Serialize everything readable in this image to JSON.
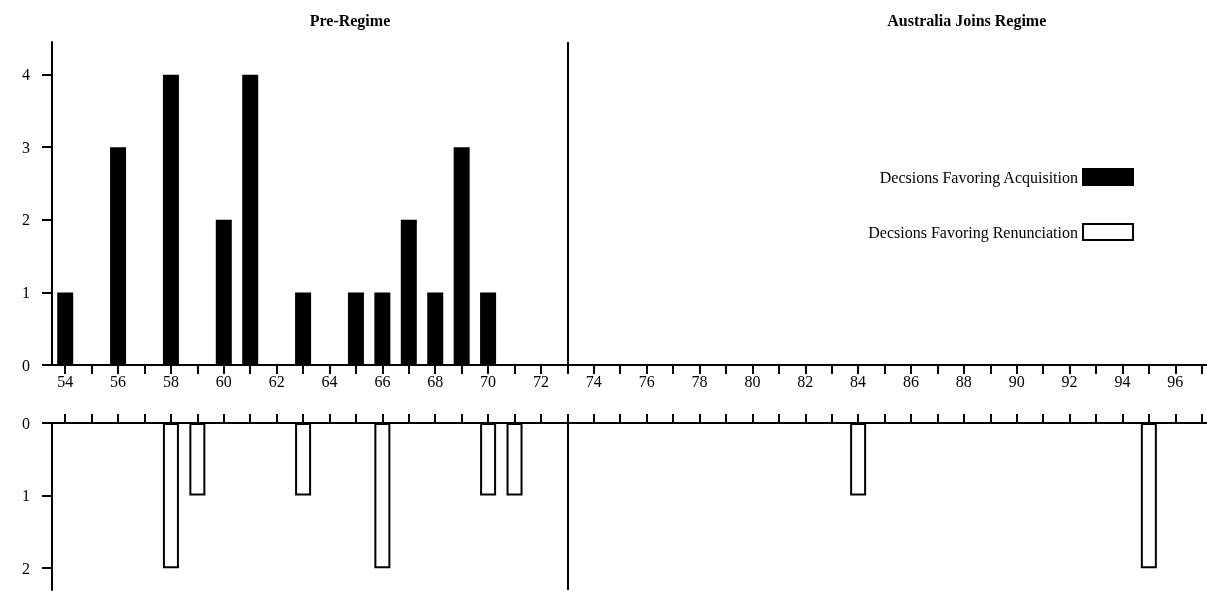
{
  "chart_data": [
    {
      "type": "bar",
      "x": [
        54,
        56,
        58,
        60,
        61,
        63,
        65,
        66,
        67,
        68,
        69,
        70
      ],
      "series": [
        {
          "name": "Decsions Favoring Acquisition",
          "color": "#000000",
          "values": [
            1,
            3,
            4,
            2,
            4,
            1,
            1,
            1,
            2,
            1,
            3,
            1
          ]
        }
      ],
      "xlim": [
        53.5,
        97.2
      ],
      "ylim": [
        0,
        4.45
      ],
      "yticks": [
        0,
        1,
        2,
        3,
        4
      ],
      "xticks": [
        54,
        {
          "value": 55,
          "label": null
        },
        56,
        {
          "value": 57,
          "label": null
        },
        58,
        {
          "value": 59,
          "label": null
        },
        60,
        {
          "value": 61,
          "label": null
        },
        62,
        {
          "value": 63,
          "label": null
        },
        64,
        {
          "value": 65,
          "label": null
        },
        66,
        {
          "value": 67,
          "label": null
        },
        68,
        {
          "value": 69,
          "label": null
        },
        70,
        {
          "value": 71,
          "label": null
        },
        72,
        {
          "value": 73,
          "label": null
        },
        74,
        {
          "value": 75,
          "label": null
        },
        76,
        {
          "value": 77,
          "label": null
        },
        78,
        {
          "value": 79,
          "label": null
        },
        80,
        {
          "value": 81,
          "label": null
        },
        82,
        {
          "value": 83,
          "label": null
        },
        84,
        {
          "value": 85,
          "label": null
        },
        86,
        {
          "value": 87,
          "label": null
        },
        88,
        {
          "value": 89,
          "label": null
        },
        90,
        {
          "value": 91,
          "label": null
        },
        92,
        {
          "value": 93,
          "label": null
        },
        94,
        {
          "value": 95,
          "label": null
        },
        96,
        {
          "value": 97,
          "label": null
        }
      ],
      "annotations": [
        "Pre-Regime",
        "Australia Joins Regime"
      ],
      "ref_lines": [
        {
          "axis": "x",
          "value": 73
        }
      ],
      "legend": "right",
      "grid": false
    },
    {
      "type": "bar",
      "x": [
        58,
        59,
        63,
        66,
        70,
        71,
        84,
        95
      ],
      "series": [
        {
          "name": "Decsions Favoring Renunciation",
          "color": "#ffffff",
          "values": [
            2,
            1,
            1,
            2,
            1,
            1,
            1,
            2
          ]
        }
      ],
      "xlim": [
        53.5,
        97.2
      ],
      "ylim": [
        2.3,
        0
      ],
      "yticks": [
        0,
        1,
        2
      ],
      "xticks": [
        {
          "value": 54,
          "label": null
        },
        {
          "value": 55,
          "label": null
        },
        {
          "value": 56,
          "label": null
        },
        {
          "value": 57,
          "label": null
        },
        {
          "value": 58,
          "label": null
        },
        {
          "value": 59,
          "label": null
        },
        {
          "value": 60,
          "label": null
        },
        {
          "value": 61,
          "label": null
        },
        {
          "value": 62,
          "label": null
        },
        {
          "value": 63,
          "label": null
        },
        {
          "value": 64,
          "label": null
        },
        {
          "value": 65,
          "label": null
        },
        {
          "value": 66,
          "label": null
        },
        {
          "value": 67,
          "label": null
        },
        {
          "value": 68,
          "label": null
        },
        {
          "value": 69,
          "label": null
        },
        {
          "value": 70,
          "label": null
        },
        {
          "value": 71,
          "label": null
        },
        {
          "value": 72,
          "label": null
        },
        {
          "value": 73,
          "label": null
        },
        {
          "value": 74,
          "label": null
        },
        {
          "value": 75,
          "label": null
        },
        {
          "value": 76,
          "label": null
        },
        {
          "value": 77,
          "label": null
        },
        {
          "value": 78,
          "label": null
        },
        {
          "value": 79,
          "label": null
        },
        {
          "value": 80,
          "label": null
        },
        {
          "value": 81,
          "label": null
        },
        {
          "value": 82,
          "label": null
        },
        {
          "value": 83,
          "label": null
        },
        {
          "value": 84,
          "label": null
        },
        {
          "value": 85,
          "label": null
        },
        {
          "value": 86,
          "label": null
        },
        {
          "value": 87,
          "label": null
        },
        {
          "value": 88,
          "label": null
        },
        {
          "value": 89,
          "label": null
        },
        {
          "value": 90,
          "label": null
        },
        {
          "value": 91,
          "label": null
        },
        {
          "value": 92,
          "label": null
        },
        {
          "value": 93,
          "label": null
        },
        {
          "value": 94,
          "label": null
        },
        {
          "value": 95,
          "label": null
        },
        {
          "value": 96,
          "label": null
        },
        {
          "value": 97,
          "label": null
        }
      ],
      "ref_lines": [
        {
          "axis": "x",
          "value": 73
        }
      ],
      "tick_labels": "y",
      "legend": "top right",
      "grid": false
    }
  ]
}
